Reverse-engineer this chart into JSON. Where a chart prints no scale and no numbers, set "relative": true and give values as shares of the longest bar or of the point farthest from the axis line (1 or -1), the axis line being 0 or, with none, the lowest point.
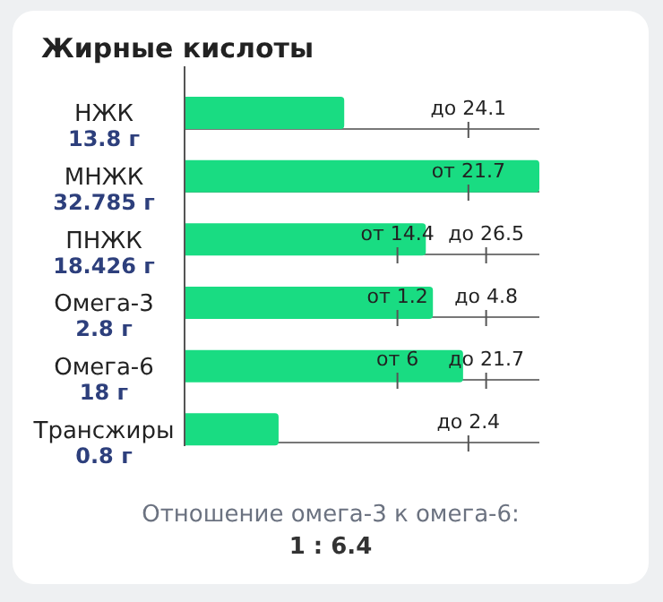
{
  "chart_data": {
    "type": "bar",
    "orientation": "horizontal",
    "relative": true,
    "title": "Жирные кислоты",
    "categories": [
      "НЖК\n13.8 г",
      "МНЖК\n32.785 г",
      "ПНЖК\n18.426 г",
      "Омега-3\n2.8 г",
      "Омега-6\n18 г",
      "Трансжиры\n0.8 г"
    ],
    "values": [
      0.45,
      1.0,
      0.68,
      0.7,
      0.785,
      0.265
    ],
    "color": "#19dc82",
    "grid": "y",
    "annotations": [
      "до 24.1",
      "от 21.7",
      "от 14.4",
      "до 26.5",
      "от 1.2",
      "до 4.8",
      "от 6",
      "до 21.7",
      "до 2.4",
      "Отношение омега-3 к омега-6:",
      "1 : 6.4"
    ]
  }
}
